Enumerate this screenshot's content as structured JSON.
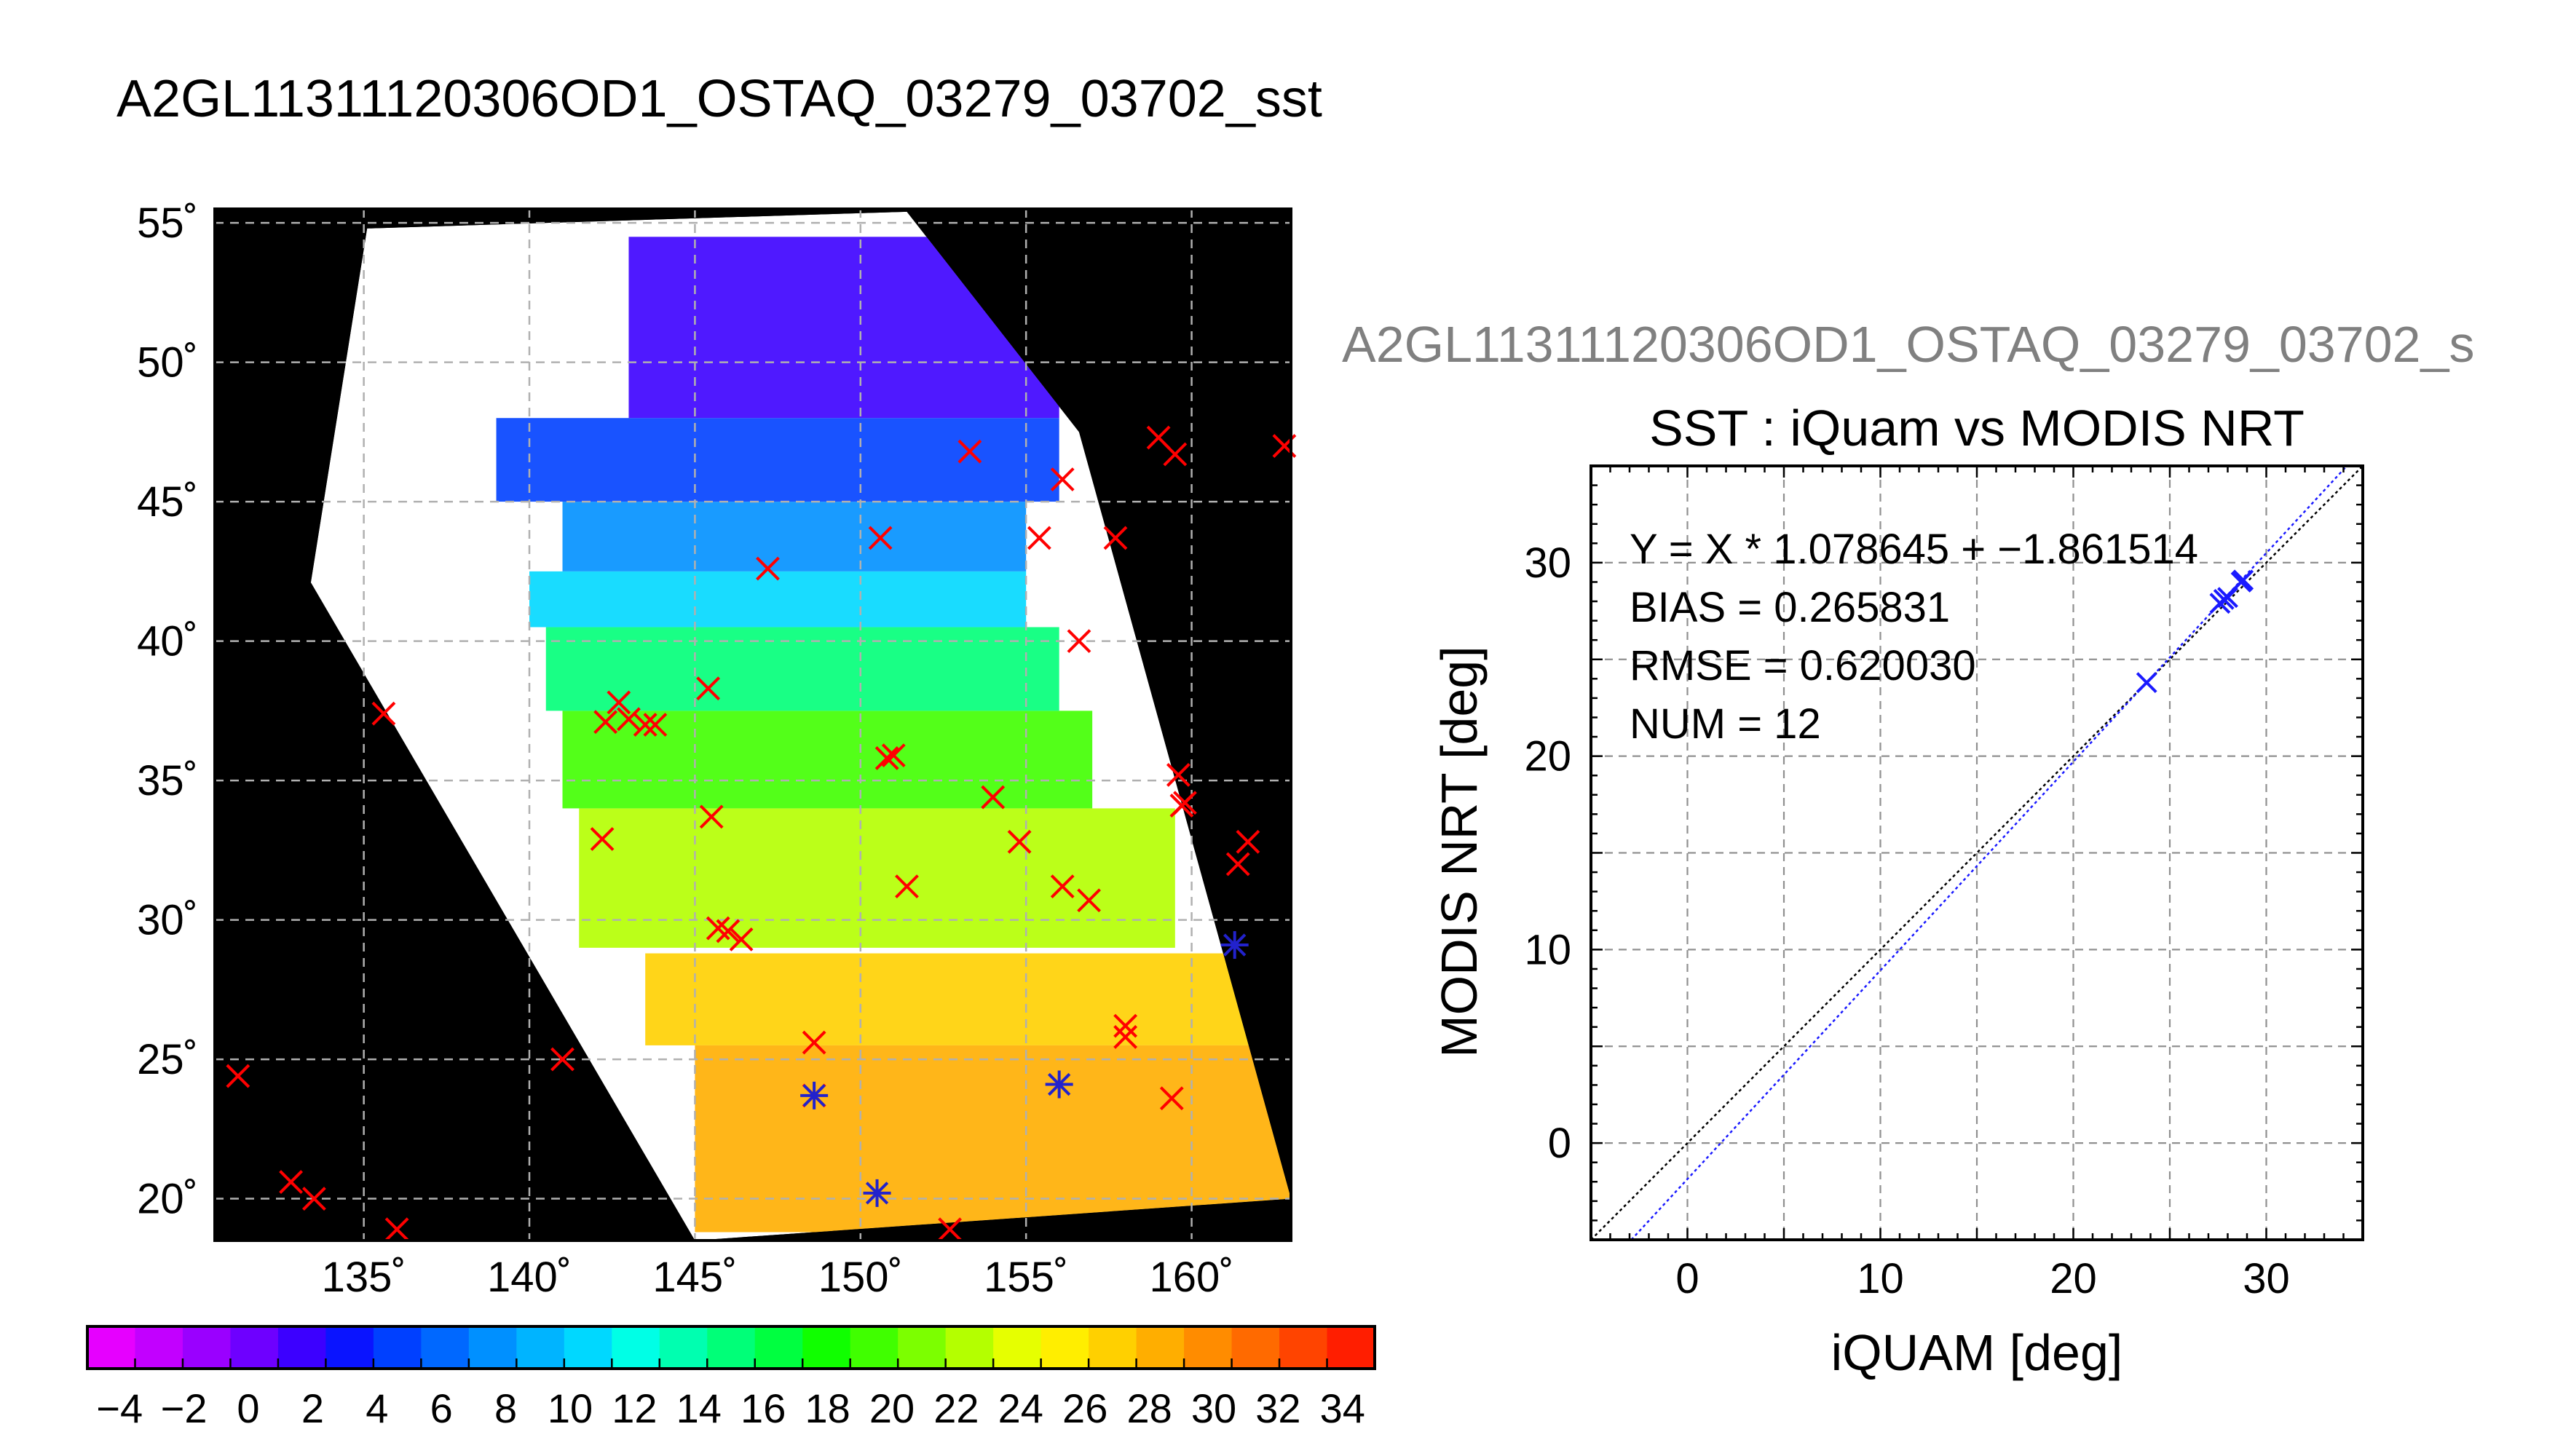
{
  "figure": {
    "title": "A2GL11311120306OD1_OSTAQ_03279_03702_sst"
  },
  "colors": {
    "land": "#000000",
    "no_data": "#ffffff",
    "grid": "#b0b0b0",
    "marker_all": "#ff0000",
    "marker_matched": "#2222cc",
    "fit_line": "#1a1aff",
    "identity_line": "#000000",
    "overlay_title": "#808080"
  },
  "chart_data": [
    {
      "type": "scatter",
      "subtype": "geographic-map",
      "projection": "cylindrical",
      "lon_range": [
        130.5,
        163
      ],
      "lat_range": [
        18.5,
        55.5
      ],
      "lon_ticks": [
        "135˚",
        "140˚",
        "145˚",
        "150˚",
        "155˚",
        "160˚"
      ],
      "lat_ticks": [
        "55˚",
        "50˚",
        "45˚",
        "40˚",
        "35˚",
        "30˚",
        "25˚",
        "20˚"
      ],
      "lon_tick_values": [
        135,
        140,
        145,
        150,
        155,
        160
      ],
      "lat_tick_values": [
        55,
        50,
        45,
        40,
        35,
        30,
        25,
        20
      ],
      "grid": true,
      "swath_corners": [
        [
          135.1,
          54.8
        ],
        [
          151.4,
          55.4
        ],
        [
          156.6,
          47.5
        ],
        [
          163,
          20
        ],
        [
          145,
          18.5
        ],
        [
          133.4,
          42.1
        ]
      ],
      "colorbar": {
        "min": -5,
        "max": 35,
        "tick_labels": [
          "−4",
          "−2",
          "0",
          "2",
          "4",
          "6",
          "8",
          "10",
          "12",
          "14",
          "16",
          "18",
          "20",
          "22",
          "24",
          "26",
          "28",
          "30",
          "32",
          "34"
        ],
        "tick_values": [
          -4,
          -2,
          0,
          2,
          4,
          6,
          8,
          10,
          12,
          14,
          16,
          18,
          20,
          22,
          24,
          26,
          28,
          30,
          32,
          34
        ],
        "bin_colors": [
          "#e600ff",
          "#c200ff",
          "#9a00ff",
          "#6e00ff",
          "#3c00ff",
          "#0a14ff",
          "#0040ff",
          "#0068ff",
          "#0090ff",
          "#00b4ff",
          "#00d8ff",
          "#00ffe6",
          "#00ffb0",
          "#00ff78",
          "#00ff40",
          "#10ff00",
          "#40ff00",
          "#7cff00",
          "#b4ff00",
          "#e6ff00",
          "#ffee00",
          "#ffd000",
          "#ffae00",
          "#ff8c00",
          "#ff6a00",
          "#ff4400",
          "#ff1e00"
        ]
      },
      "sst_regions": [
        {
          "lat_range": [
            18.8,
            25.5
          ],
          "lon_range": [
            145,
            163
          ],
          "sst": 29
        },
        {
          "lat_range": [
            25.5,
            28.8
          ],
          "lon_range": [
            143.5,
            162
          ],
          "sst": 27.5
        },
        {
          "lat_range": [
            29,
            34
          ],
          "lon_range": [
            141.5,
            159.5
          ],
          "sst": 23
        },
        {
          "lat_range": [
            34,
            37.5
          ],
          "lon_range": [
            141,
            157
          ],
          "sst": 19
        },
        {
          "lat_range": [
            37.5,
            40.5
          ],
          "lon_range": [
            140.5,
            156
          ],
          "sst": 15
        },
        {
          "lat_range": [
            40.5,
            42.5
          ],
          "lon_range": [
            140,
            155
          ],
          "sst": 11
        },
        {
          "lat_range": [
            42.5,
            45
          ],
          "lon_range": [
            141,
            155
          ],
          "sst": 7
        },
        {
          "lat_range": [
            45,
            48
          ],
          "lon_range": [
            139,
            156
          ],
          "sst": 4
        },
        {
          "lat_range": [
            48,
            54.5
          ],
          "lon_range": [
            143,
            156
          ],
          "sst": 2
        }
      ],
      "points_all": [
        {
          "lon": 131.2,
          "lat": 24.4
        },
        {
          "lon": 132.8,
          "lat": 20.6
        },
        {
          "lon": 133.5,
          "lat": 20.0
        },
        {
          "lon": 135.6,
          "lat": 37.4
        },
        {
          "lon": 136.0,
          "lat": 18.9
        },
        {
          "lon": 141.0,
          "lat": 25.0
        },
        {
          "lon": 142.2,
          "lat": 32.9
        },
        {
          "lon": 142.3,
          "lat": 37.1
        },
        {
          "lon": 142.7,
          "lat": 37.8
        },
        {
          "lon": 143.0,
          "lat": 37.2
        },
        {
          "lon": 143.5,
          "lat": 37.0
        },
        {
          "lon": 143.8,
          "lat": 37.0
        },
        {
          "lon": 145.4,
          "lat": 38.3
        },
        {
          "lon": 145.5,
          "lat": 33.7
        },
        {
          "lon": 145.7,
          "lat": 29.7
        },
        {
          "lon": 146.0,
          "lat": 29.6
        },
        {
          "lon": 146.4,
          "lat": 29.3
        },
        {
          "lon": 147.2,
          "lat": 42.6
        },
        {
          "lon": 148.6,
          "lat": 25.6
        },
        {
          "lon": 148.6,
          "lat": 23.7
        },
        {
          "lon": 150.6,
          "lat": 43.7
        },
        {
          "lon": 150.8,
          "lat": 35.8
        },
        {
          "lon": 151.0,
          "lat": 35.9
        },
        {
          "lon": 151.4,
          "lat": 31.2
        },
        {
          "lon": 152.7,
          "lat": 18.9
        },
        {
          "lon": 153.3,
          "lat": 46.8
        },
        {
          "lon": 154.0,
          "lat": 34.4
        },
        {
          "lon": 154.8,
          "lat": 32.8
        },
        {
          "lon": 155.4,
          "lat": 43.7
        },
        {
          "lon": 156.1,
          "lat": 45.8
        },
        {
          "lon": 156.1,
          "lat": 31.2
        },
        {
          "lon": 156.6,
          "lat": 40.0
        },
        {
          "lon": 156.9,
          "lat": 30.7
        },
        {
          "lon": 157.7,
          "lat": 43.7
        },
        {
          "lon": 158.0,
          "lat": 26.2
        },
        {
          "lon": 158.0,
          "lat": 25.8
        },
        {
          "lon": 159.0,
          "lat": 47.3
        },
        {
          "lon": 159.4,
          "lat": 23.6
        },
        {
          "lon": 159.5,
          "lat": 46.7
        },
        {
          "lon": 159.6,
          "lat": 35.2
        },
        {
          "lon": 159.7,
          "lat": 34.1
        },
        {
          "lon": 159.8,
          "lat": 34.2
        },
        {
          "lon": 161.4,
          "lat": 32.0
        },
        {
          "lon": 161.7,
          "lat": 32.8
        },
        {
          "lon": 162.8,
          "lat": 47.0
        }
      ],
      "points_matched": [
        {
          "lon": 148.6,
          "lat": 23.7
        },
        {
          "lon": 150.5,
          "lat": 20.2
        },
        {
          "lon": 156.0,
          "lat": 24.1
        },
        {
          "lon": 161.3,
          "lat": 29.1
        }
      ]
    },
    {
      "type": "scatter",
      "overlay_title": "A2GL11311120306OD1_OSTAQ_03279_03702_s",
      "title": "SST : iQuam vs MODIS NRT",
      "xlabel": "iQUAM [deg]",
      "ylabel": "MODIS NRT [deg]",
      "xlim": [
        -5,
        35
      ],
      "ylim": [
        -5,
        35
      ],
      "xticks": [
        "0",
        "10",
        "20",
        "30"
      ],
      "yticks": [
        "0",
        "10",
        "20",
        "30"
      ],
      "tick_values": [
        0,
        10,
        20,
        30
      ],
      "minor_tick_step": 1,
      "grid_step": 5,
      "grid": true,
      "annotations": [
        "Y = X * 1.078645 + −1.861514",
        "BIAS = 0.265831",
        "RMSE = 0.620030",
        "NUM = 12"
      ],
      "fit": {
        "slope": 1.078645,
        "intercept": -1.861514
      },
      "points": [
        {
          "x": 23.8,
          "y": 23.8
        },
        {
          "x": 27.6,
          "y": 27.9
        },
        {
          "x": 27.8,
          "y": 28.1
        },
        {
          "x": 28.0,
          "y": 28.2
        },
        {
          "x": 28.7,
          "y": 29.0
        },
        {
          "x": 28.8,
          "y": 29.1
        }
      ]
    }
  ]
}
